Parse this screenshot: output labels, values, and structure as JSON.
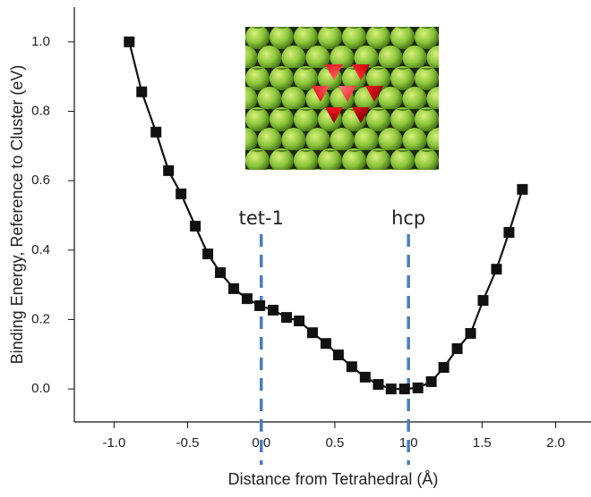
{
  "chart_data": {
    "type": "line",
    "x_label": "Distance from Tetrahedral (Å)",
    "y_label": "Binding Energy, Reference to Cluster (eV)",
    "x": [
      -0.897,
      -0.812,
      -0.715,
      -0.63,
      -0.545,
      -0.448,
      -0.363,
      -0.278,
      -0.187,
      -0.096,
      -0.01,
      0.081,
      0.172,
      0.257,
      0.348,
      0.439,
      0.524,
      0.615,
      0.706,
      0.795,
      0.882,
      0.973,
      1.064,
      1.155,
      1.24,
      1.331,
      1.422,
      1.507,
      1.598,
      1.683,
      1.774
    ],
    "series": [
      {
        "color": "#111111",
        "values": [
          1.0,
          0.856,
          0.74,
          0.629,
          0.562,
          0.469,
          0.389,
          0.335,
          0.289,
          0.26,
          0.24,
          0.227,
          0.206,
          0.196,
          0.162,
          0.131,
          0.098,
          0.064,
          0.034,
          0.013,
          0.0,
          0.0,
          0.003,
          0.021,
          0.062,
          0.116,
          0.16,
          0.255,
          0.345,
          0.451,
          0.575
        ]
      }
    ],
    "xlim": [
      -1.27,
      2.24
    ],
    "ylim": [
      -0.095,
      1.1
    ],
    "xticks": [
      {
        "value": -1,
        "label": "-1.0"
      },
      {
        "value": -0.5,
        "label": "-0.5"
      },
      {
        "value": 0,
        "label": "0.0"
      },
      {
        "value": 0.5,
        "label": "0.5"
      },
      {
        "value": 1,
        "label": "1.0"
      },
      {
        "value": 1.5,
        "label": "1.5"
      },
      {
        "value": 2,
        "label": "2.0"
      }
    ],
    "yticks": [
      {
        "value": 0,
        "label": "0.0"
      },
      {
        "value": 0.2,
        "label": "0.2"
      },
      {
        "value": 0.4,
        "label": "0.4"
      },
      {
        "value": 0.6,
        "label": "0.6"
      },
      {
        "value": 0.8,
        "label": "0.8"
      },
      {
        "value": 1,
        "label": "1.0"
      }
    ],
    "vlines": [
      {
        "x": 0,
        "label": "tet-1",
        "color": "#4a7ebb"
      },
      {
        "x": 1,
        "label": "hcp",
        "color": "#4a7ebb"
      }
    ],
    "grid": false
  }
}
